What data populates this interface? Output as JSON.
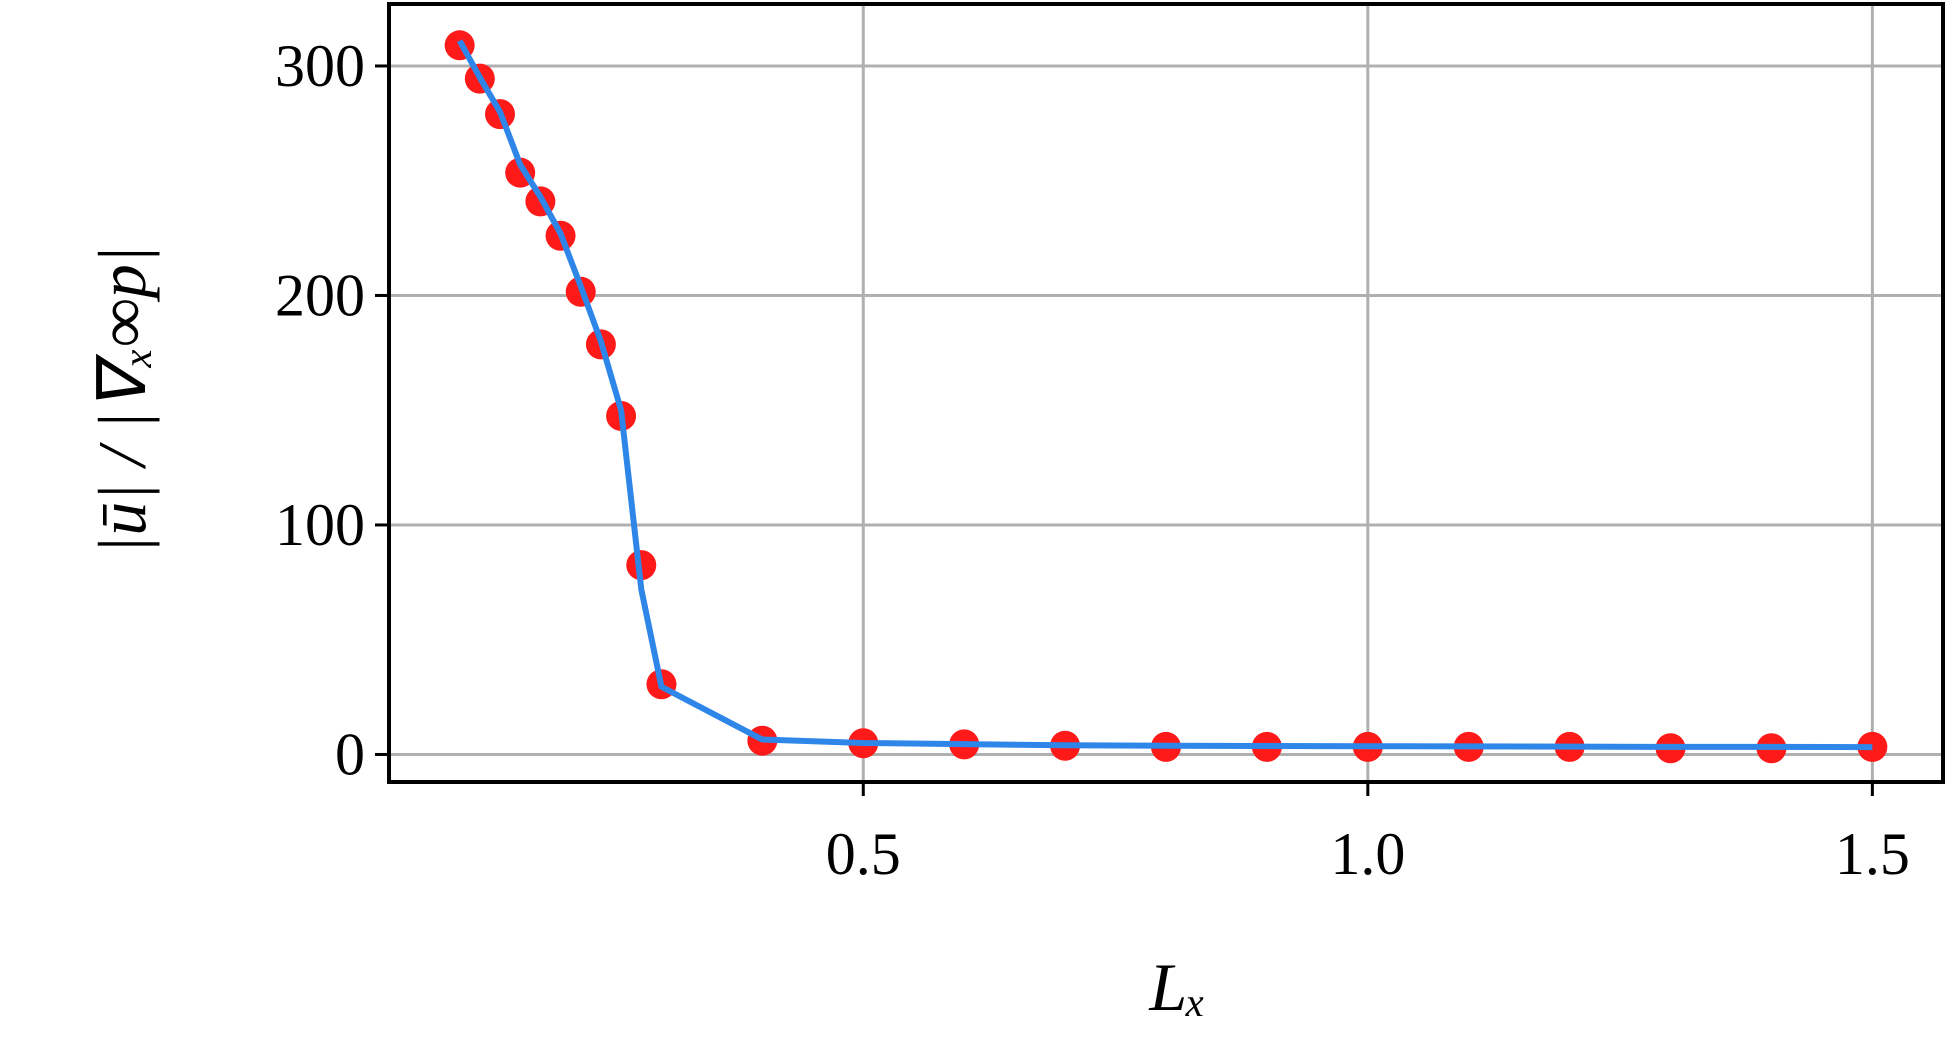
{
  "chart_data": {
    "type": "line",
    "x_label": "Lₓ",
    "y_label": "|ū| / |∇ₓ∞p|",
    "x": [
      0.1,
      0.12,
      0.14,
      0.16,
      0.18,
      0.2,
      0.22,
      0.24,
      0.26,
      0.28,
      0.3,
      0.4,
      0.5,
      0.6,
      0.7,
      0.8,
      0.9,
      1.0,
      1.1,
      1.2,
      1.3,
      1.4,
      1.5
    ],
    "series": [
      {
        "type": "scatter",
        "color": "#ff1a1a",
        "values": [
          309,
          294.5,
          279,
          253.5,
          241,
          226,
          201.6,
          178.7,
          147.5,
          82.5,
          30.6,
          6,
          4.9,
          4.4,
          3.8,
          3.3,
          3.3,
          3.3,
          3.3,
          3.3,
          2.7,
          2.7,
          3.3
        ]
      },
      {
        "type": "line",
        "color": "#2e86e8",
        "values": [
          311,
          295,
          280,
          257,
          243,
          227,
          204,
          180,
          150,
          72,
          29.5,
          6.5,
          5,
          4.5,
          4,
          3.8,
          3.7,
          3.6,
          3.5,
          3.4,
          3.3,
          3.3,
          3.2
        ]
      }
    ],
    "xlim": [
      0.03,
      1.57
    ],
    "ylim": [
      -12,
      327
    ],
    "xticks": [
      0.5,
      {
        "value": 1,
        "label": "1.0"
      },
      1.5
    ],
    "yticks": [
      0,
      100,
      200,
      300
    ],
    "grid": true
  }
}
